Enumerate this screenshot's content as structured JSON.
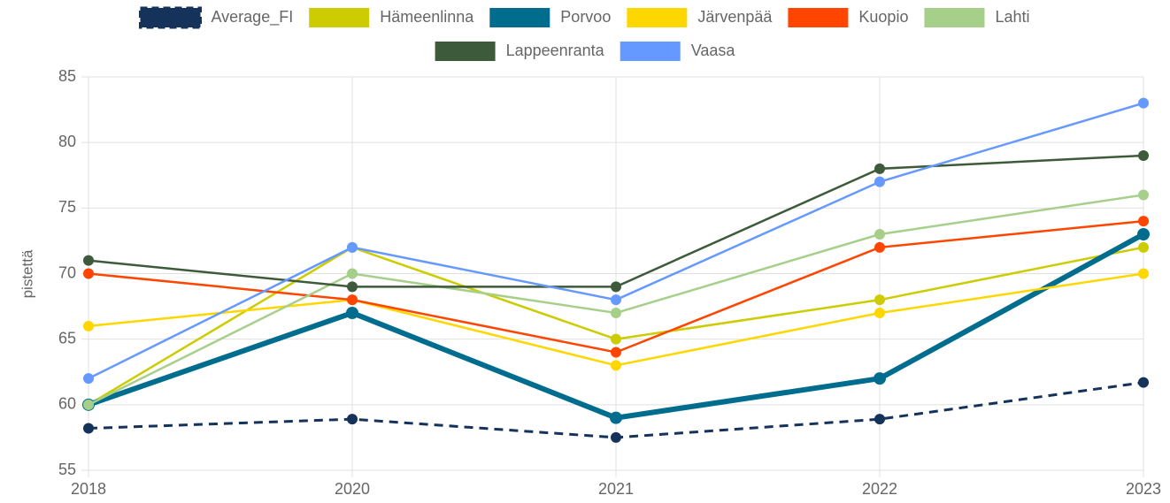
{
  "chart_data": {
    "type": "line",
    "y_label": "pistettä",
    "categories": [
      "2018",
      "2020",
      "2021",
      "2022",
      "2023"
    ],
    "ylim": [
      55,
      85
    ],
    "yticks": [
      55,
      60,
      65,
      70,
      75,
      80,
      85
    ],
    "grid": true,
    "legend": "top",
    "series": [
      {
        "name": "Average_FI",
        "color": "#14325a",
        "dashed": true,
        "values": [
          58.2,
          58.9,
          57.5,
          58.9,
          61.7
        ]
      },
      {
        "name": "Hämeenlinna",
        "color": "#cccc00",
        "values": [
          60,
          72,
          65,
          68,
          72
        ]
      },
      {
        "name": "Porvoo",
        "color": "#006d8f",
        "thick": true,
        "values": [
          60,
          67,
          59,
          62,
          73
        ]
      },
      {
        "name": "Järvenpää",
        "color": "#ffd700",
        "values": [
          66,
          68,
          63,
          67,
          70
        ]
      },
      {
        "name": "Kuopio",
        "color": "#ff4500",
        "values": [
          70,
          68,
          64,
          72,
          74
        ]
      },
      {
        "name": "Lahti",
        "color": "#a6d08a",
        "values": [
          60,
          70,
          67,
          73,
          76
        ]
      },
      {
        "name": "Lappeenranta",
        "color": "#3d5a3a",
        "values": [
          71,
          69,
          69,
          78,
          79
        ]
      },
      {
        "name": "Vaasa",
        "color": "#6699ff",
        "values": [
          62,
          72,
          68,
          77,
          83
        ]
      }
    ]
  }
}
